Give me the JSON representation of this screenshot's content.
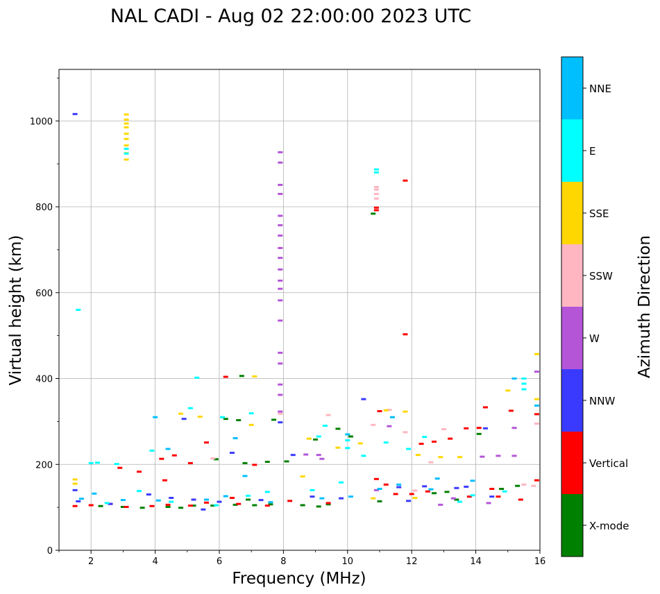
{
  "chart_data": {
    "type": "scatter",
    "title": "NAL CADI - Aug 02 22:00:00 2023 UTC",
    "xlabel": "Frequency (MHz)",
    "ylabel": "Virtual height (km)",
    "xlim": [
      1,
      16
    ],
    "ylim": [
      0,
      1120
    ],
    "xticks": [
      2,
      4,
      6,
      8,
      10,
      12,
      14,
      16
    ],
    "yticks": [
      0,
      200,
      400,
      600,
      800,
      1000
    ],
    "grid": true,
    "colorbar": {
      "label": "Azimuth Direction",
      "categories": [
        {
          "name": "X-mode",
          "color": "#008000"
        },
        {
          "name": "Vertical",
          "color": "#ff0000"
        },
        {
          "name": "NNW",
          "color": "#3a3aff"
        },
        {
          "name": "W",
          "color": "#b455d8"
        },
        {
          "name": "SSW",
          "color": "#ffb6c1"
        },
        {
          "name": "SSE",
          "color": "#ffd700"
        },
        {
          "name": "E",
          "color": "#00ffff"
        },
        {
          "name": "NNE",
          "color": "#00bfff"
        }
      ]
    },
    "series": [
      {
        "name": "X-mode",
        "points": [
          [
            2.3,
            103
          ],
          [
            3.0,
            101
          ],
          [
            3.6,
            99
          ],
          [
            4.4,
            101
          ],
          [
            5.2,
            104
          ],
          [
            5.8,
            104
          ],
          [
            6.5,
            106
          ],
          [
            7.1,
            105
          ],
          [
            7.6,
            107
          ],
          [
            8.6,
            105
          ],
          [
            9.1,
            102
          ],
          [
            9.4,
            107
          ],
          [
            6.7,
            406
          ],
          [
            6.2,
            306
          ],
          [
            6.6,
            303
          ],
          [
            5.9,
            212
          ],
          [
            6.8,
            203
          ],
          [
            7.5,
            206
          ],
          [
            8.1,
            207
          ],
          [
            9.0,
            258
          ],
          [
            9.7,
            283
          ],
          [
            10.1,
            265
          ],
          [
            13.1,
            136
          ],
          [
            13.4,
            118
          ],
          [
            14.1,
            271
          ],
          [
            14.8,
            143
          ],
          [
            15.3,
            150
          ],
          [
            11.0,
            114
          ],
          [
            10.8,
            784
          ],
          [
            12.7,
            133
          ],
          [
            7.7,
            304
          ],
          [
            4.8,
            99
          ],
          [
            6.9,
            118
          ]
        ]
      },
      {
        "name": "Vertical",
        "points": [
          [
            1.5,
            103
          ],
          [
            2.0,
            105
          ],
          [
            2.6,
            108
          ],
          [
            3.1,
            101
          ],
          [
            3.9,
            103
          ],
          [
            4.4,
            106
          ],
          [
            5.1,
            104
          ],
          [
            5.6,
            111
          ],
          [
            6.6,
            108
          ],
          [
            7.5,
            104
          ],
          [
            8.2,
            115
          ],
          [
            9.4,
            110
          ],
          [
            10.9,
            166
          ],
          [
            11.2,
            153
          ],
          [
            11.5,
            131
          ],
          [
            12.0,
            131
          ],
          [
            12.5,
            137
          ],
          [
            12.7,
            253
          ],
          [
            13.2,
            260
          ],
          [
            13.8,
            125
          ],
          [
            14.1,
            285
          ],
          [
            14.3,
            333
          ],
          [
            14.5,
            143
          ],
          [
            14.7,
            125
          ],
          [
            15.1,
            325
          ],
          [
            15.4,
            118
          ],
          [
            15.9,
            317
          ],
          [
            15.9,
            163
          ],
          [
            11.0,
            324
          ],
          [
            11.8,
            861
          ],
          [
            11.8,
            503
          ],
          [
            10.9,
            798
          ],
          [
            10.9,
            792
          ],
          [
            6.2,
            404
          ],
          [
            5.1,
            203
          ],
          [
            5.6,
            251
          ],
          [
            4.2,
            213
          ],
          [
            4.6,
            221
          ],
          [
            2.9,
            192
          ],
          [
            3.5,
            183
          ],
          [
            7.1,
            199
          ],
          [
            13.7,
            284
          ],
          [
            12.3,
            248
          ],
          [
            6.4,
            122
          ],
          [
            4.3,
            163
          ]
        ]
      },
      {
        "name": "NNW",
        "points": [
          [
            1.5,
            140
          ],
          [
            1.6,
            114
          ],
          [
            2.6,
            108
          ],
          [
            3.8,
            130
          ],
          [
            4.5,
            122
          ],
          [
            5.2,
            118
          ],
          [
            6.0,
            113
          ],
          [
            7.3,
            117
          ],
          [
            8.9,
            125
          ],
          [
            9.8,
            121
          ],
          [
            10.5,
            352
          ],
          [
            11.6,
            147
          ],
          [
            12.4,
            149
          ],
          [
            13.4,
            145
          ],
          [
            14.3,
            284
          ],
          [
            14.5,
            125
          ],
          [
            11.9,
            115
          ],
          [
            1.5,
            1016
          ],
          [
            6.4,
            227
          ],
          [
            7.9,
            298
          ],
          [
            4.9,
            306
          ],
          [
            8.3,
            222
          ],
          [
            13.7,
            148
          ],
          [
            5.5,
            95
          ]
        ]
      },
      {
        "name": "W",
        "points": [
          [
            7.9,
            927
          ],
          [
            7.9,
            903
          ],
          [
            7.9,
            851
          ],
          [
            7.9,
            830
          ],
          [
            7.9,
            779
          ],
          [
            7.9,
            757
          ],
          [
            7.9,
            733
          ],
          [
            7.9,
            704
          ],
          [
            7.9,
            681
          ],
          [
            7.9,
            654
          ],
          [
            7.9,
            628
          ],
          [
            7.9,
            609
          ],
          [
            7.9,
            582
          ],
          [
            7.9,
            535
          ],
          [
            7.9,
            460
          ],
          [
            7.9,
            435
          ],
          [
            7.9,
            386
          ],
          [
            7.9,
            362
          ],
          [
            7.9,
            323
          ],
          [
            9.2,
            213
          ],
          [
            9.1,
            222
          ],
          [
            14.7,
            220
          ],
          [
            14.2,
            218
          ],
          [
            15.2,
            220
          ],
          [
            15.9,
            416
          ],
          [
            15.2,
            285
          ],
          [
            12.9,
            106
          ],
          [
            13.3,
            121
          ],
          [
            14.4,
            110
          ],
          [
            8.7,
            223
          ],
          [
            11.3,
            289
          ],
          [
            10.9,
            140
          ]
        ]
      },
      {
        "name": "SSW",
        "points": [
          [
            10.9,
            846
          ],
          [
            10.9,
            840
          ],
          [
            10.9,
            830
          ],
          [
            10.9,
            819
          ],
          [
            11.3,
            327
          ],
          [
            12.6,
            205
          ],
          [
            15.5,
            153
          ],
          [
            15.8,
            150
          ],
          [
            15.9,
            295
          ],
          [
            9.4,
            315
          ],
          [
            10.8,
            292
          ],
          [
            11.8,
            275
          ],
          [
            7.9,
            318
          ],
          [
            5.8,
            214
          ],
          [
            12.1,
            139
          ],
          [
            13.0,
            282
          ]
        ]
      },
      {
        "name": "SSE",
        "points": [
          [
            3.1,
            1015
          ],
          [
            3.1,
            1003
          ],
          [
            3.1,
            994
          ],
          [
            3.1,
            985
          ],
          [
            3.1,
            970
          ],
          [
            3.1,
            958
          ],
          [
            3.1,
            943
          ],
          [
            3.1,
            925
          ],
          [
            3.1,
            910
          ],
          [
            1.5,
            165
          ],
          [
            1.5,
            155
          ],
          [
            8.6,
            172
          ],
          [
            12.9,
            217
          ],
          [
            13.5,
            217
          ],
          [
            12.2,
            222
          ],
          [
            15.0,
            372
          ],
          [
            15.9,
            457
          ],
          [
            15.9,
            352
          ],
          [
            11.2,
            326
          ],
          [
            11.8,
            323
          ],
          [
            10.8,
            121
          ],
          [
            12.1,
            122
          ],
          [
            9.7,
            239
          ],
          [
            7.0,
            292
          ],
          [
            5.4,
            311
          ],
          [
            4.8,
            318
          ],
          [
            7.1,
            405
          ],
          [
            8.8,
            260
          ],
          [
            10.4,
            249
          ]
        ]
      },
      {
        "name": "E",
        "points": [
          [
            3.1,
            935
          ],
          [
            3.1,
            924
          ],
          [
            1.6,
            560
          ],
          [
            10.9,
            887
          ],
          [
            10.9,
            880
          ],
          [
            5.3,
            402
          ],
          [
            15.5,
            400
          ],
          [
            15.5,
            375
          ],
          [
            15.5,
            388
          ],
          [
            10.0,
            256
          ],
          [
            10.0,
            238
          ],
          [
            10.5,
            220
          ],
          [
            11.2,
            251
          ],
          [
            11.9,
            236
          ],
          [
            12.4,
            264
          ],
          [
            9.1,
            265
          ],
          [
            9.3,
            290
          ],
          [
            8.9,
            140
          ],
          [
            9.8,
            158
          ],
          [
            4.5,
            113
          ],
          [
            2.5,
            110
          ],
          [
            3.5,
            138
          ],
          [
            6.9,
            127
          ],
          [
            5.9,
            105
          ],
          [
            7.5,
            136
          ],
          [
            2.2,
            204
          ],
          [
            2.8,
            201
          ],
          [
            3.9,
            232
          ],
          [
            5.1,
            331
          ],
          [
            6.1,
            310
          ],
          [
            7.0,
            319
          ],
          [
            14.9,
            137
          ],
          [
            13.5,
            113
          ],
          [
            13.9,
            128
          ],
          [
            2.0,
            203
          ]
        ]
      },
      {
        "name": "NNE",
        "points": [
          [
            1.7,
            120
          ],
          [
            2.1,
            132
          ],
          [
            3.0,
            117
          ],
          [
            4.1,
            116
          ],
          [
            5.6,
            118
          ],
          [
            6.2,
            126
          ],
          [
            7.6,
            112
          ],
          [
            9.2,
            121
          ],
          [
            10.1,
            125
          ],
          [
            11.0,
            143
          ],
          [
            11.6,
            153
          ],
          [
            12.8,
            167
          ],
          [
            13.9,
            162
          ],
          [
            15.2,
            400
          ],
          [
            15.9,
            337
          ],
          [
            4.0,
            310
          ],
          [
            4.4,
            236
          ],
          [
            6.5,
            261
          ],
          [
            10.0,
            270
          ],
          [
            11.4,
            310
          ],
          [
            12.6,
            142
          ],
          [
            6.8,
            173
          ]
        ]
      }
    ]
  }
}
